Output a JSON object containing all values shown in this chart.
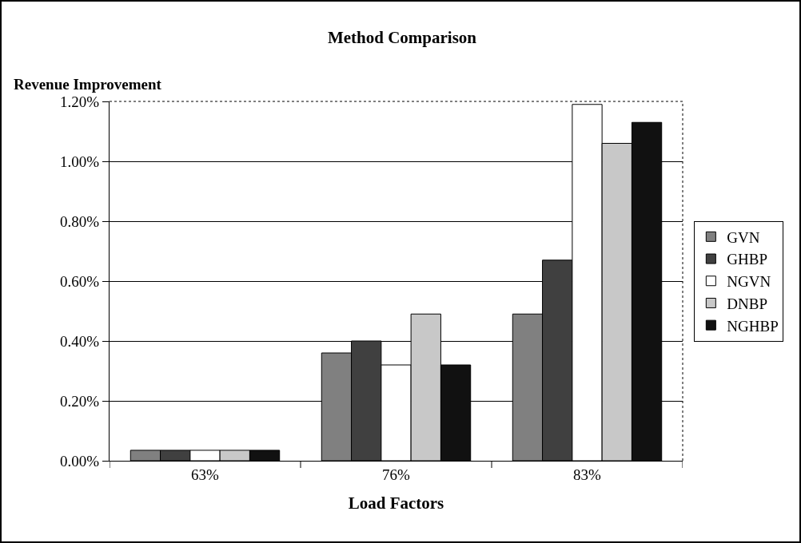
{
  "chart_data": {
    "type": "bar",
    "title": "Method Comparison",
    "ylabel": "Revenue Improvement",
    "xlabel": "Load Factors",
    "categories": [
      "63%",
      "76%",
      "83%"
    ],
    "series": [
      {
        "name": "GVN",
        "color": "#808080",
        "values": [
          0.035,
          0.36,
          0.49
        ]
      },
      {
        "name": "GHBP",
        "color": "#404040",
        "values": [
          0.035,
          0.4,
          0.67
        ]
      },
      {
        "name": "NGVN",
        "color": "#ffffff",
        "values": [
          0.035,
          0.32,
          1.19
        ]
      },
      {
        "name": "DNBP",
        "color": "#c8c8c8",
        "values": [
          0.035,
          0.49,
          1.06
        ]
      },
      {
        "name": "NGHBP",
        "color": "#111111",
        "values": [
          0.035,
          0.32,
          1.13
        ]
      }
    ],
    "ylim": [
      0,
      1.2
    ],
    "yticks": [
      {
        "value": 0,
        "label": "0.00%"
      },
      {
        "value": 0.2,
        "label": "0.20%"
      },
      {
        "value": 0.4,
        "label": "0.40%"
      },
      {
        "value": 0.6,
        "label": "0.60%"
      },
      {
        "value": 0.8,
        "label": "0.80%"
      },
      {
        "value": 1.0,
        "label": "1.00%"
      },
      {
        "value": 1.2,
        "label": "1.20%"
      }
    ],
    "grid": "y",
    "legend": "right"
  }
}
